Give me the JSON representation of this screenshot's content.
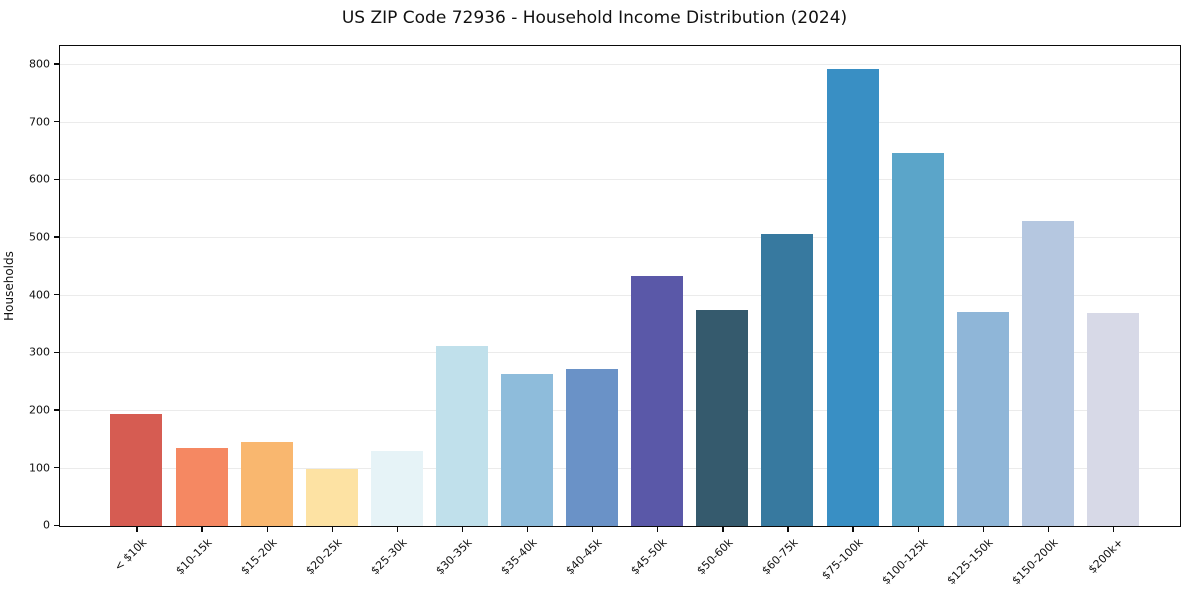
{
  "chart_data": {
    "type": "bar",
    "title": "US ZIP Code 72936 - Household Income Distribution (2024)",
    "xlabel": "",
    "ylabel": "Households",
    "categories": [
      "< $10k",
      "$10-15k",
      "$15-20k",
      "$20-25k",
      "$25-30k",
      "$30-35k",
      "$35-40k",
      "$40-45k",
      "$45-50k",
      "$50-60k",
      "$60-75k",
      "$75-100k",
      "$100-125k",
      "$125-150k",
      "$150-200k",
      "$200k+"
    ],
    "values": [
      195,
      135,
      145,
      99,
      130,
      312,
      264,
      272,
      433,
      374,
      507,
      792,
      647,
      371,
      528,
      369
    ],
    "bar_colors": [
      "#d65c52",
      "#f58862",
      "#f9b76f",
      "#fde2a3",
      "#e6f3f7",
      "#c0e0eb",
      "#8ebcdb",
      "#6a92c7",
      "#5a58a8",
      "#355a6d",
      "#37799f",
      "#398fc4",
      "#5ba5c9",
      "#8fb6d8",
      "#b5c7e0",
      "#d7d9e7"
    ],
    "yticks": [
      0,
      100,
      200,
      300,
      400,
      500,
      600,
      700,
      800
    ],
    "ylim": [
      0,
      830
    ],
    "grid": "horizontal",
    "legend": "none",
    "background_color": "#ffffff",
    "axis_color": "#0a0a0a",
    "grid_color": "#ebebeb",
    "text_color": "#111111"
  }
}
